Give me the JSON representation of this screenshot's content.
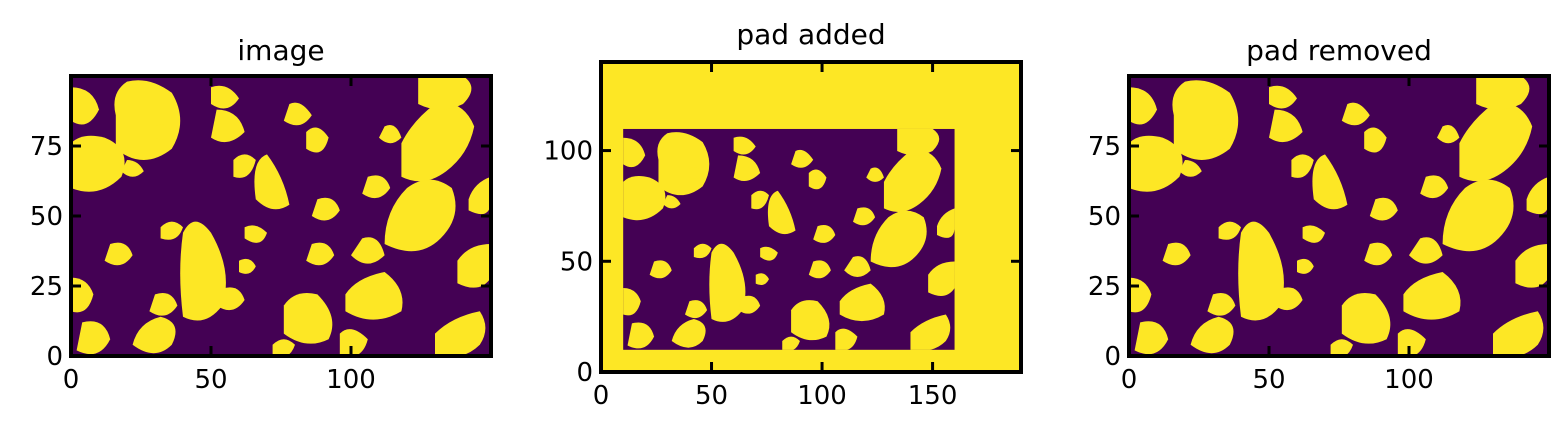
{
  "colors": {
    "background_phase": "#440154",
    "foreground_phase": "#fde725",
    "axes": "#000000"
  },
  "colormap": "viridis",
  "chart_data": [
    {
      "type": "heatmap",
      "title": "image",
      "xlim": [
        0,
        150
      ],
      "ylim": [
        0,
        100
      ],
      "xticks": [
        0,
        50,
        100
      ],
      "yticks": [
        0,
        25,
        50,
        75
      ],
      "image_size": [
        150,
        100
      ],
      "pad_width": 0,
      "tick_direction": "in",
      "values": "binary field: 0 = background (dark purple), 1 = foreground (yellow)"
    },
    {
      "type": "heatmap",
      "title": "pad added",
      "xlim": [
        0,
        190
      ],
      "ylim": [
        0,
        140
      ],
      "xticks": [
        0,
        50,
        100,
        150
      ],
      "yticks": [
        0,
        50,
        100
      ],
      "image_size": [
        190,
        140
      ],
      "inner_region": {
        "x": [
          10,
          160
        ],
        "y": [
          10,
          110
        ]
      },
      "pad_value": 1,
      "tick_direction": "in"
    },
    {
      "type": "heatmap",
      "title": "pad removed",
      "xlim": [
        0,
        150
      ],
      "ylim": [
        0,
        100
      ],
      "xticks": [
        0,
        50,
        100
      ],
      "yticks": [
        0,
        25,
        50,
        75
      ],
      "image_size": [
        150,
        100
      ],
      "pad_width": 0,
      "tick_direction": "in"
    }
  ]
}
